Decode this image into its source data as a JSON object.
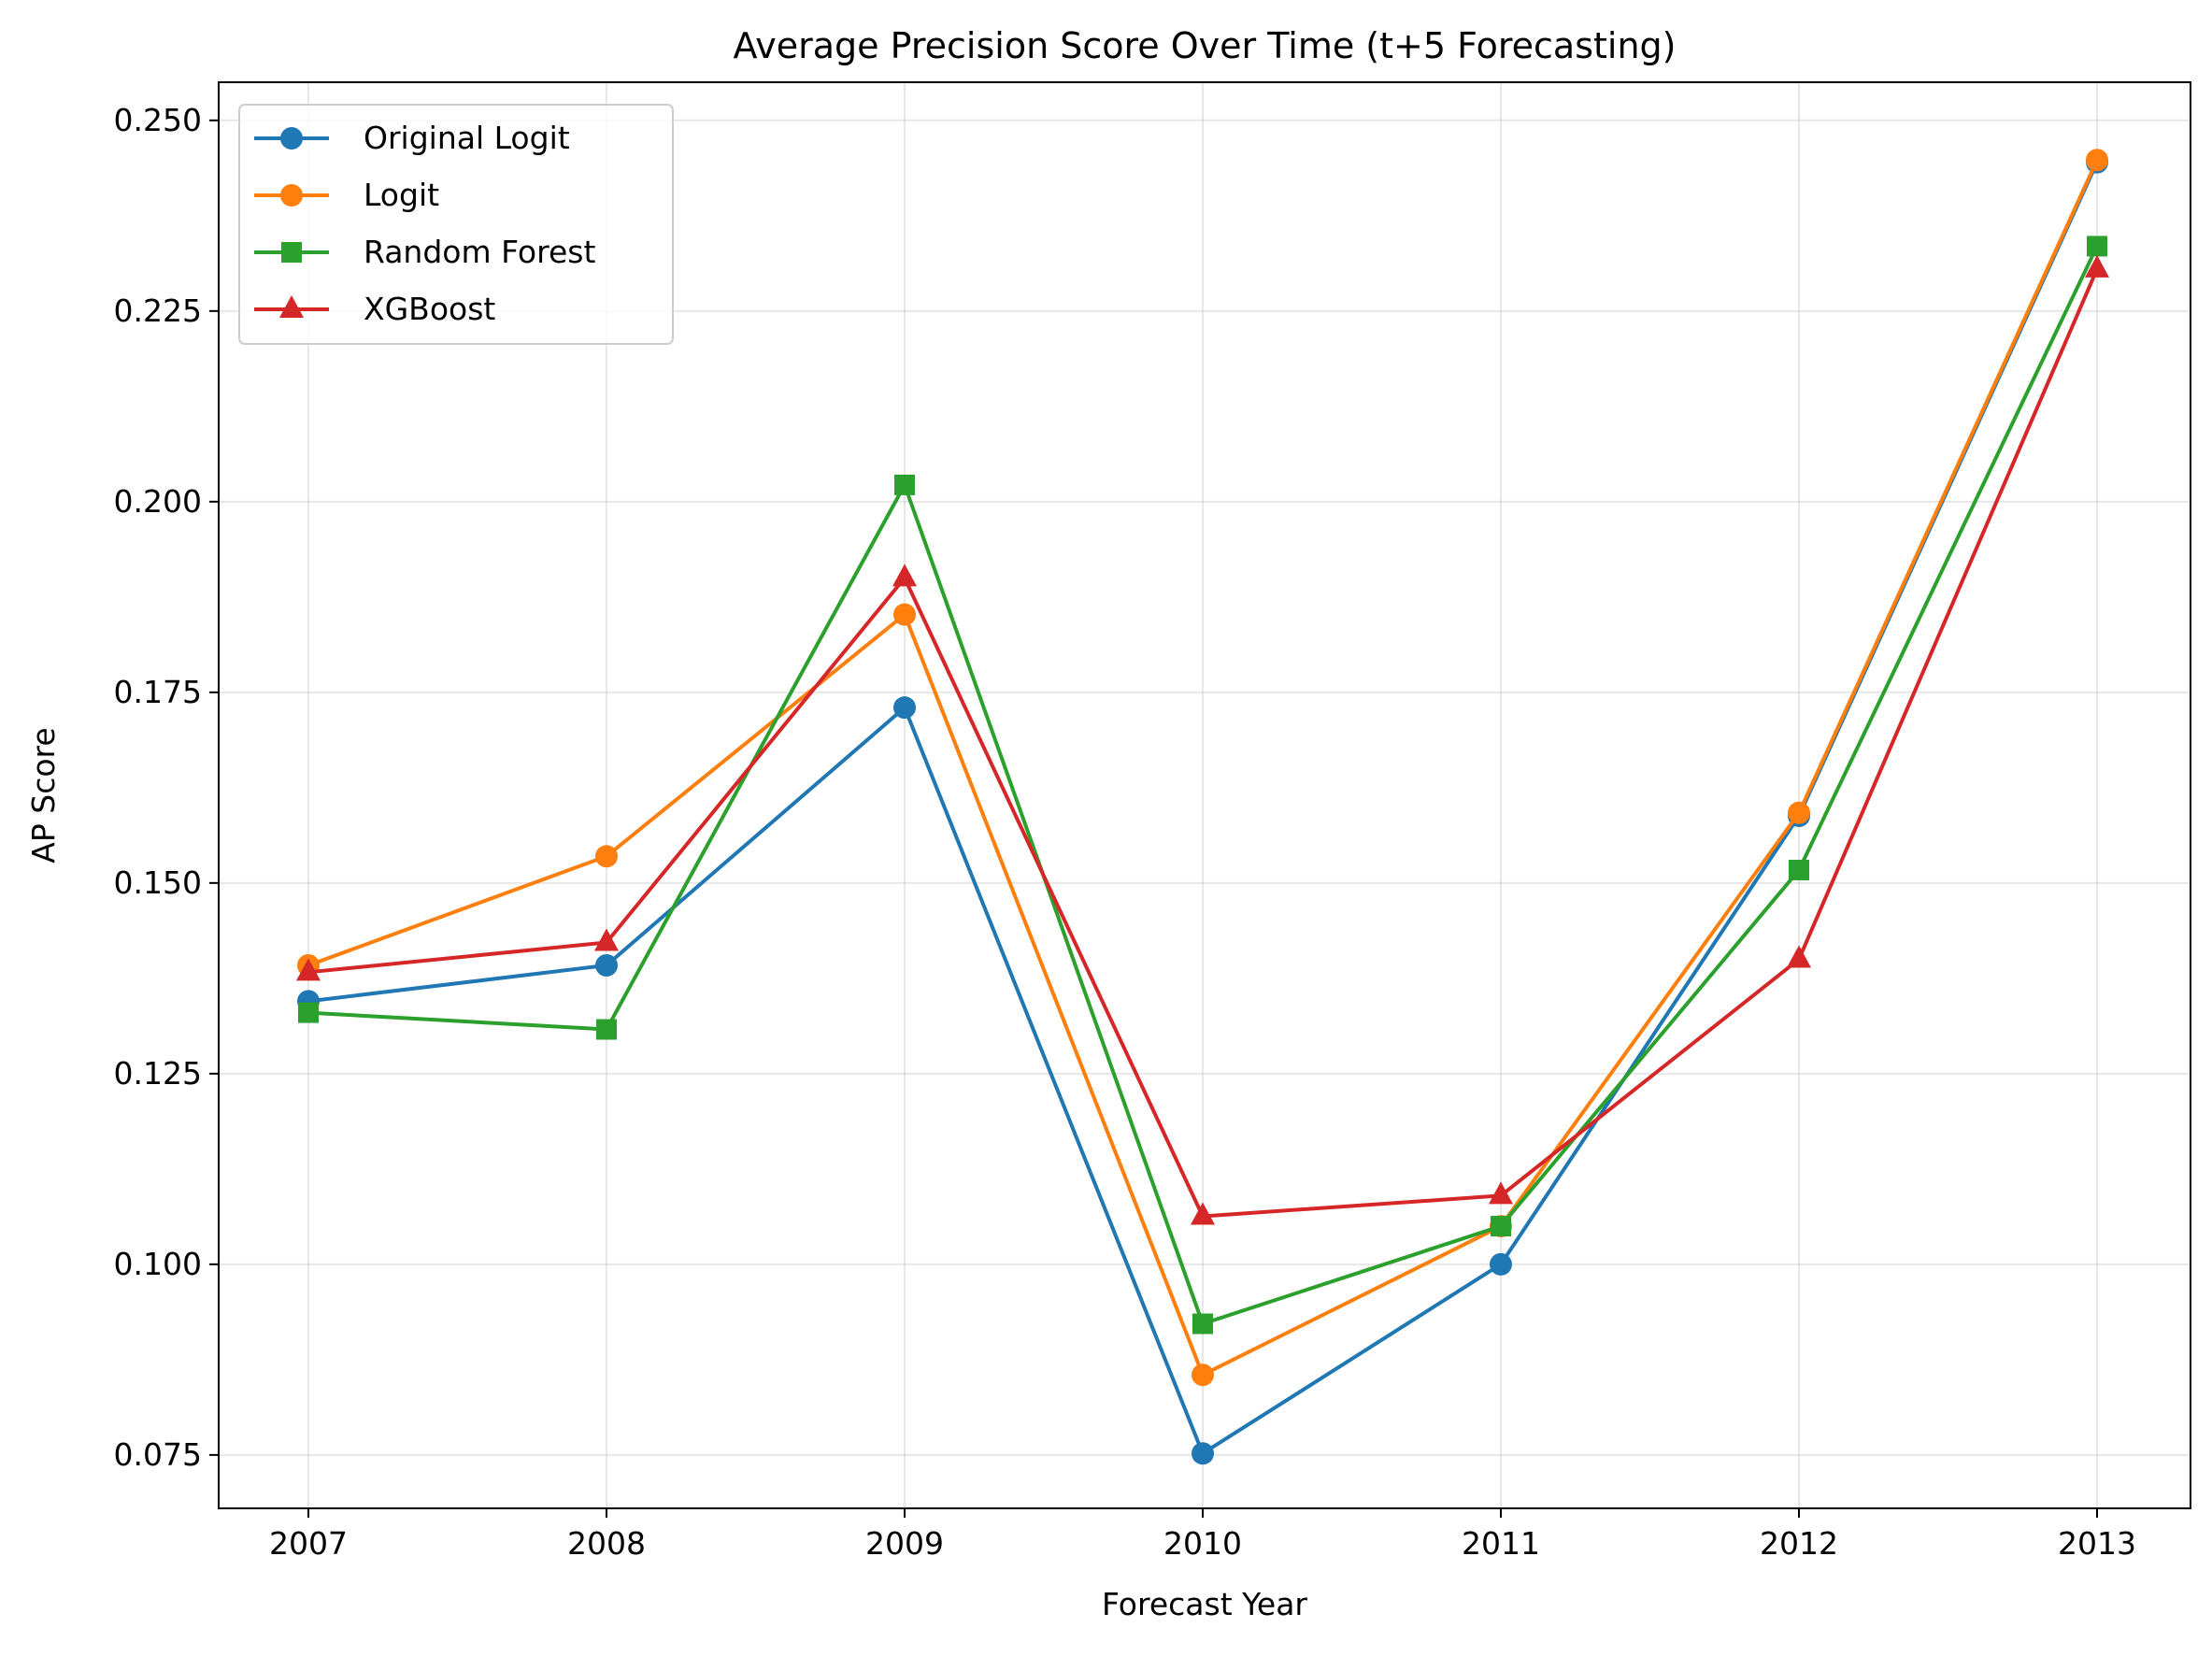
{
  "chart_data": {
    "type": "line",
    "title": "Average Precision Score Over Time (t+5 Forecasting)",
    "xlabel": "Forecast Year",
    "ylabel": "AP Score",
    "categories": [
      "2007",
      "2008",
      "2009",
      "2010",
      "2011",
      "2012",
      "2013"
    ],
    "ylim": [
      0.068,
      0.255
    ],
    "yticks": [
      0.075,
      0.1,
      0.125,
      0.15,
      0.175,
      0.2,
      0.225,
      0.25
    ],
    "ytick_labels": [
      "0.075",
      "0.100",
      "0.125",
      "0.150",
      "0.175",
      "0.200",
      "0.225",
      "0.250"
    ],
    "grid": true,
    "legend_position": "top-left",
    "series": [
      {
        "name": "Original Logit",
        "color": "#1f77b4",
        "marker": "circle",
        "values": [
          0.1345,
          0.1392,
          0.173,
          0.0752,
          0.1,
          0.1588,
          0.2445
        ]
      },
      {
        "name": "Logit",
        "color": "#ff7f0e",
        "marker": "circle",
        "values": [
          0.1392,
          0.1535,
          0.1852,
          0.0855,
          0.105,
          0.1592,
          0.2448
        ]
      },
      {
        "name": "Random Forest",
        "color": "#2ca02c",
        "marker": "square",
        "values": [
          0.133,
          0.1308,
          0.2022,
          0.0922,
          0.105,
          0.1517,
          0.2335
        ]
      },
      {
        "name": "XGBoost",
        "color": "#d62728",
        "marker": "triangle",
        "values": [
          0.1383,
          0.1422,
          0.19,
          0.1063,
          0.109,
          0.14,
          0.2305
        ]
      }
    ]
  }
}
